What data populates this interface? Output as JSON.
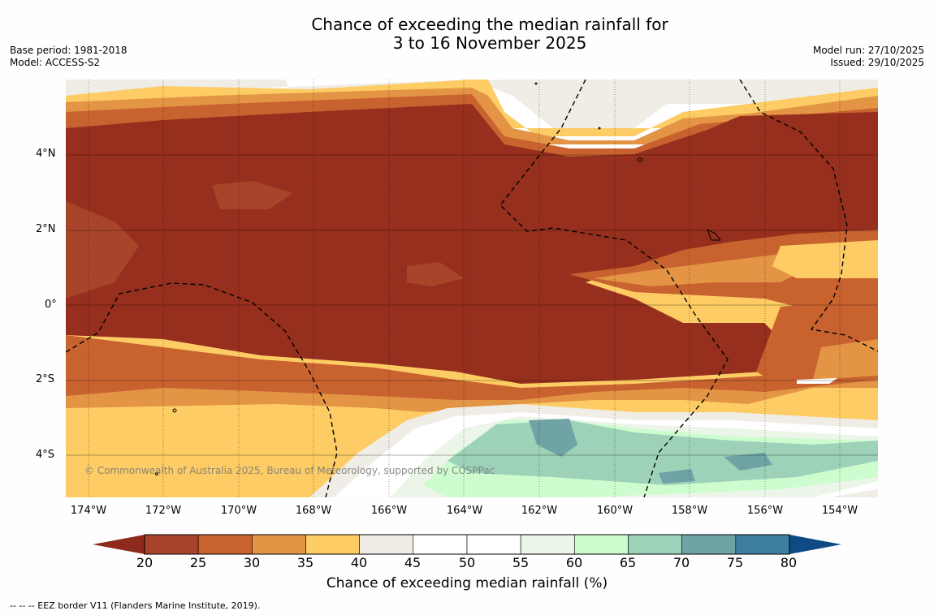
{
  "title": {
    "line1": "Chance of exceeding the median rainfall for",
    "line2": "3 to 16 November 2025"
  },
  "meta": {
    "base_period": "Base period: 1981-2018",
    "model": "Model: ACCESS-S2",
    "model_run": "Model run: 27/10/2025",
    "issued": "Issued: 29/10/2025"
  },
  "map": {
    "copyright": "© Commonwealth of Australia 2025, Bureau of Meteorology, supported by COSPPac",
    "lat_labels": [
      "4°N",
      "2°N",
      "0°",
      "2°S",
      "4°S"
    ],
    "lon_labels": [
      "174°W",
      "172°W",
      "170°W",
      "168°W",
      "166°W",
      "164°W",
      "162°W",
      "160°W",
      "158°W",
      "156°W",
      "154°W"
    ]
  },
  "colorbar": {
    "ticks": [
      "20",
      "25",
      "30",
      "35",
      "40",
      "45",
      "50",
      "55",
      "60",
      "65",
      "70",
      "75",
      "80"
    ],
    "label": "Chance of exceeding median rainfall (%)",
    "colors": {
      "under": "#8e2a1b",
      "c20_25": "#a8442a",
      "c25_30": "#c8622f",
      "c30_35": "#e39445",
      "c35_40": "#fdcc64",
      "c40_45": "#f0ede6",
      "c45_50": "#ffffff",
      "c50_55": "#ffffff",
      "c55_60": "#ebf5e8",
      "c60_65": "#cdfcce",
      "c65_70": "#9dd2b9",
      "c70_75": "#6fa3a6",
      "c75_80": "#3e7ea0",
      "over": "#0f4a85"
    }
  },
  "footnote": "--  --  -- EEZ border V11 (Flanders Marine Institute, 2019)."
}
